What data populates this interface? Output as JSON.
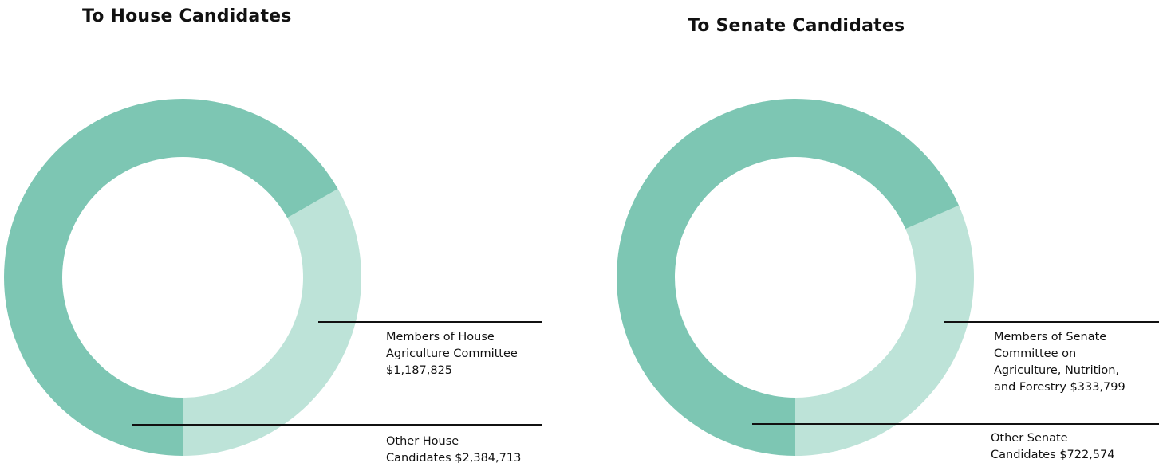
{
  "chart_data": [
    {
      "type": "pie",
      "title": "To House Candidates",
      "slices": [
        {
          "label": "Members of House\nAgriculture Committee\n$1,187,825",
          "value": 1187825,
          "color": "#bde3d8"
        },
        {
          "label": "Other House\nCandidates $2,384,713",
          "value": 2384713,
          "color": "#7dc6b3"
        }
      ]
    },
    {
      "type": "pie",
      "title": "To Senate Candidates",
      "slices": [
        {
          "label": "Members of Senate\nCommittee on\nAgriculture, Nutrition,\nand Forestry $333,799",
          "value": 333799,
          "color": "#bde3d8"
        },
        {
          "label": "Other Senate\nCandidates $722,574",
          "value": 722574,
          "color": "#7dc6b3"
        }
      ]
    }
  ]
}
